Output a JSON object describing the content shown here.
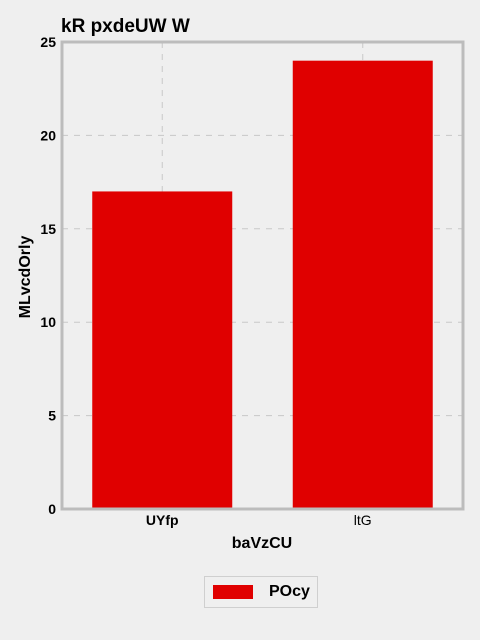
{
  "chart_data": {
    "type": "bar",
    "title": "kR pxdeUW W",
    "xlabel": "baVzCU",
    "ylabel": "MLvcdOrly",
    "categories": [
      "UYfp",
      "ltG"
    ],
    "series": [
      {
        "name": "POcy",
        "values": [
          17,
          24
        ]
      }
    ],
    "ylim": [
      0,
      25
    ],
    "yticks": [
      "0",
      "5",
      "10",
      "15",
      "20",
      "25"
    ],
    "grid": true,
    "legend_position": "bottom-center",
    "colors": {
      "bar": "#e00000",
      "grid": "#c8c8c8",
      "frame": "#bcbcbc",
      "background": "#efefef"
    }
  }
}
